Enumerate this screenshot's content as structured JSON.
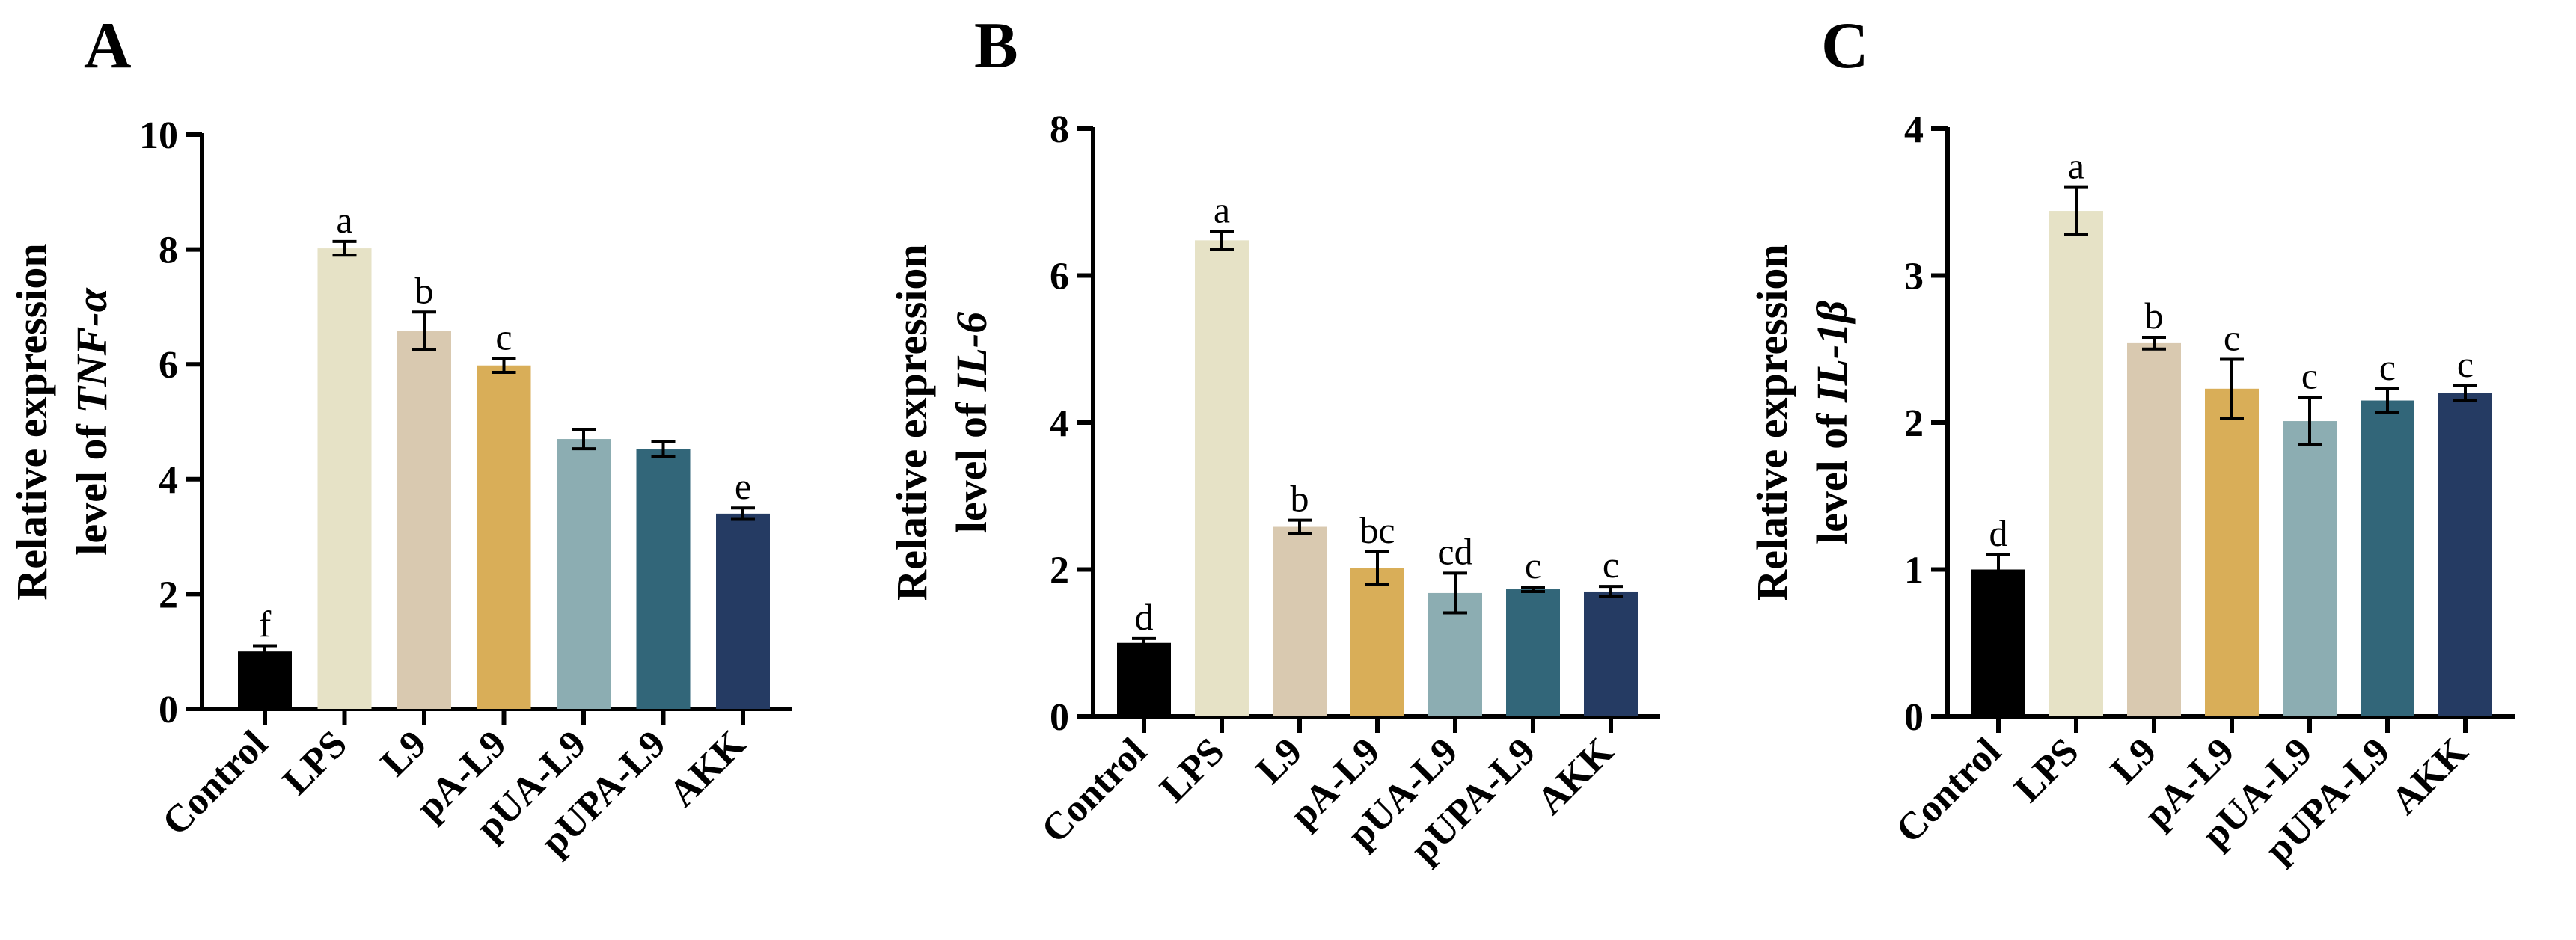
{
  "chart_data": [
    {
      "type": "bar",
      "panel": "A",
      "ylabel_line1": "Relative expression",
      "ylabel_prefix": "level of ",
      "ylabel_gene": "TNF-α",
      "ylim": [
        0,
        10
      ],
      "yticks": [
        "0",
        "2",
        "4",
        "6",
        "8",
        "10"
      ],
      "ytick_values": [
        0,
        2,
        4,
        6,
        8,
        10
      ],
      "categories": [
        "Control",
        "LPS",
        "L9",
        "pA-L9",
        "pUA-L9",
        "pUPA-L9",
        "AKK"
      ],
      "values": [
        1.0,
        8.02,
        6.58,
        5.98,
        4.7,
        4.52,
        3.4
      ],
      "errors": [
        0.1,
        0.12,
        0.33,
        0.12,
        0.17,
        0.13,
        0.1
      ],
      "letters": [
        "f",
        "a",
        "b",
        "c",
        "",
        "",
        "e"
      ]
    },
    {
      "type": "bar",
      "panel": "B",
      "ylabel_line1": "Relative expression",
      "ylabel_prefix": "level of ",
      "ylabel_gene": "IL-6",
      "ylim": [
        0,
        8
      ],
      "yticks": [
        "0",
        "2",
        "4",
        "6",
        "8"
      ],
      "ytick_values": [
        0,
        2,
        4,
        6,
        8
      ],
      "categories": [
        "Control",
        "LPS",
        "L9",
        "pA-L9",
        "pUA-L9",
        "pUPA-L9",
        "AKK"
      ],
      "values": [
        1.0,
        6.48,
        2.58,
        2.02,
        1.68,
        1.73,
        1.7
      ],
      "errors": [
        0.06,
        0.12,
        0.09,
        0.22,
        0.27,
        0.03,
        0.07
      ],
      "letters": [
        "d",
        "a",
        "b",
        "bc",
        "cd",
        "c",
        "c"
      ]
    },
    {
      "type": "bar",
      "panel": "C",
      "ylabel_line1": "Relative expression",
      "ylabel_prefix": "level of ",
      "ylabel_gene": "IL-1β",
      "ylim": [
        0,
        4
      ],
      "yticks": [
        "0",
        "1",
        "2",
        "3",
        "4"
      ],
      "ytick_values": [
        0,
        1,
        2,
        3,
        4
      ],
      "categories": [
        "Control",
        "LPS",
        "L9",
        "pA-L9",
        "pUA-L9",
        "pUPA-L9",
        "AKK"
      ],
      "values": [
        1.0,
        3.44,
        2.54,
        2.23,
        2.01,
        2.15,
        2.2
      ],
      "errors": [
        0.1,
        0.16,
        0.04,
        0.2,
        0.16,
        0.08,
        0.05
      ],
      "letters": [
        "d",
        "a",
        "b",
        "c",
        "c",
        "c",
        "c"
      ]
    }
  ],
  "colors": [
    "#000000",
    "#e6e2c6",
    "#d9c9b0",
    "#d9ae58",
    "#8cadb2",
    "#326679",
    "#253b63"
  ]
}
